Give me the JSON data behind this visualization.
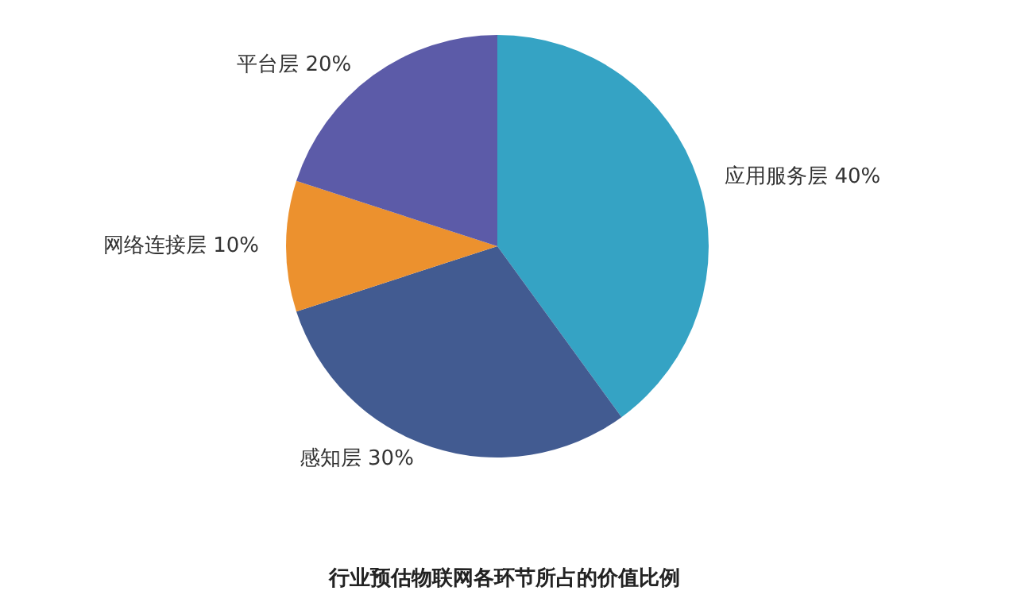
{
  "chart_data": {
    "type": "pie",
    "title": "行业预估物联网各环节所占的价值比例",
    "categories": [
      "应用服务层",
      "感知层",
      "网络连接层",
      "平台层"
    ],
    "values": [
      40,
      30,
      10,
      20
    ],
    "value_labels": [
      "40%",
      "30%",
      "10%",
      "20%"
    ],
    "colors": [
      "#35a3c4",
      "#425b91",
      "#ec912e",
      "#5c5ba8"
    ],
    "legend": false
  }
}
